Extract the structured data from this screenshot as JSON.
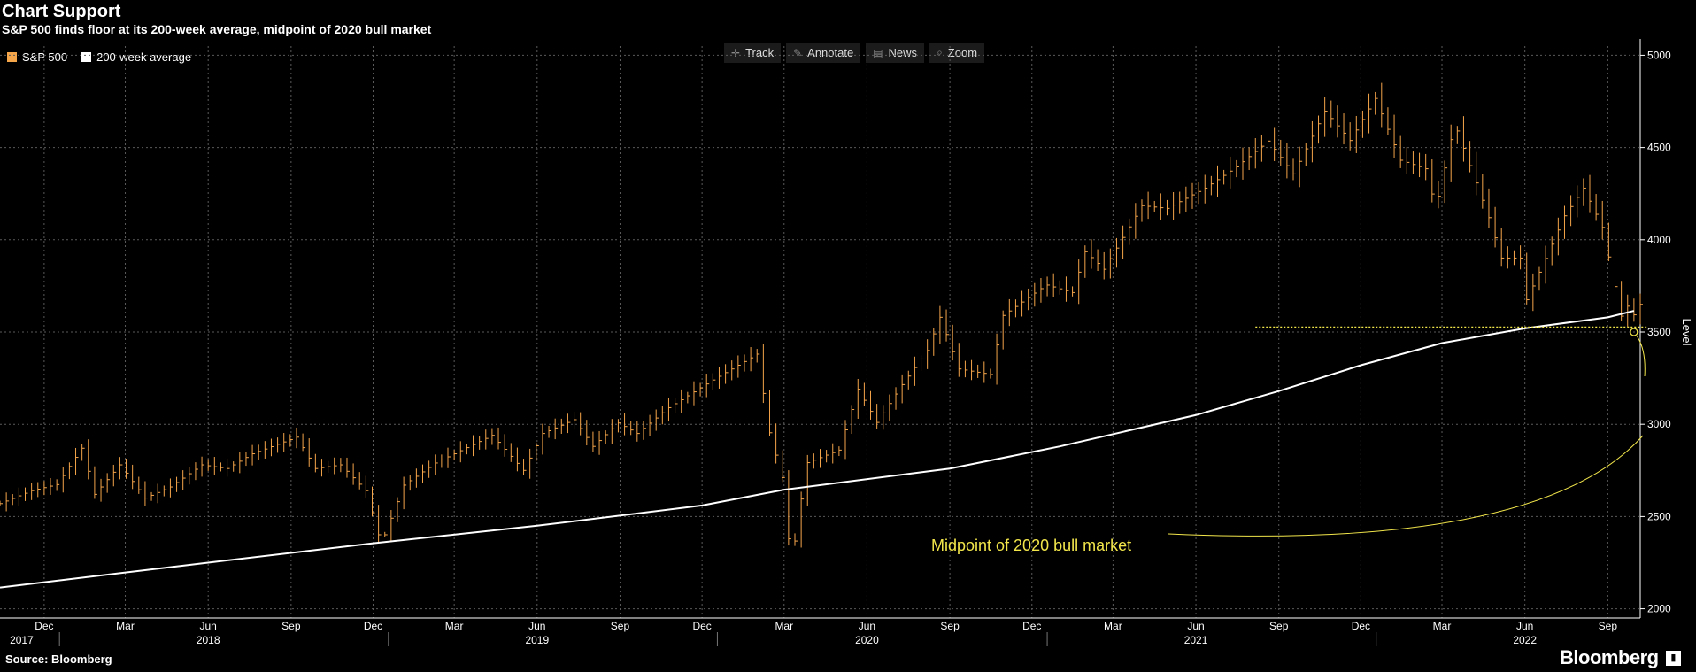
{
  "header": {
    "title": "Chart Support",
    "subtitle": "S&P 500 finds floor at its 200-week average, midpoint of 2020 bull market"
  },
  "legend": [
    {
      "label": "S&P 500",
      "color": "#f5a54a"
    },
    {
      "label": "200-week average",
      "color": "#ffffff"
    }
  ],
  "toolbar": [
    {
      "label": "Track",
      "icon": "crosshair-icon",
      "glyph": "✛"
    },
    {
      "label": "Annotate",
      "icon": "pencil-icon",
      "glyph": "✎"
    },
    {
      "label": "News",
      "icon": "news-icon",
      "glyph": "▤"
    },
    {
      "label": "Zoom",
      "icon": "magnifier-icon",
      "glyph": "⌕"
    }
  ],
  "footer": {
    "source": "Source: Bloomberg",
    "brand": "Bloomberg"
  },
  "colors": {
    "background": "#000000",
    "sp500": "#f5a54a",
    "average": "#ffffff",
    "annotation": "#f2e64b",
    "grid": "#5a5a5a"
  },
  "chart_data": {
    "type": "line",
    "ylabel": "Level",
    "ylim": [
      1950,
      5050
    ],
    "yticks": [
      2000,
      2500,
      3000,
      3500,
      4000,
      4500,
      5000
    ],
    "x_range": [
      "2017-10-27",
      "2022-10-21"
    ],
    "x_month_ticks": [
      {
        "label": "Dec",
        "date": "2017-12-15"
      },
      {
        "label": "Mar",
        "date": "2018-03-15"
      },
      {
        "label": "Jun",
        "date": "2018-06-15"
      },
      {
        "label": "Sep",
        "date": "2018-09-15"
      },
      {
        "label": "Dec",
        "date": "2018-12-15"
      },
      {
        "label": "Mar",
        "date": "2019-03-15"
      },
      {
        "label": "Jun",
        "date": "2019-06-15"
      },
      {
        "label": "Sep",
        "date": "2019-09-15"
      },
      {
        "label": "Dec",
        "date": "2019-12-15"
      },
      {
        "label": "Mar",
        "date": "2020-03-15"
      },
      {
        "label": "Jun",
        "date": "2020-06-15"
      },
      {
        "label": "Sep",
        "date": "2020-09-15"
      },
      {
        "label": "Dec",
        "date": "2020-12-15"
      },
      {
        "label": "Mar",
        "date": "2021-03-15"
      },
      {
        "label": "Jun",
        "date": "2021-06-15"
      },
      {
        "label": "Sep",
        "date": "2021-09-15"
      },
      {
        "label": "Dec",
        "date": "2021-12-15"
      },
      {
        "label": "Mar",
        "date": "2022-03-15"
      },
      {
        "label": "Jun",
        "date": "2022-06-15"
      },
      {
        "label": "Sep",
        "date": "2022-09-15"
      }
    ],
    "x_year_labels": [
      {
        "label": "2017",
        "date": "2017-11-20"
      },
      {
        "label": "2018",
        "date": "2018-06-15"
      },
      {
        "label": "2019",
        "date": "2019-06-15"
      },
      {
        "label": "2020",
        "date": "2020-06-15"
      },
      {
        "label": "2021",
        "date": "2021-06-15"
      },
      {
        "label": "2022",
        "date": "2022-06-15"
      }
    ],
    "x_year_dividers": [
      "2018-01-01",
      "2019-01-01",
      "2020-01-01",
      "2021-01-01",
      "2022-01-01"
    ],
    "series": [
      {
        "name": "S&P 500",
        "style": "weekly-bars",
        "color": "#f5a54a",
        "points": [
          [
            "2017-10-27",
            2570
          ],
          [
            "2017-12-01",
            2640
          ],
          [
            "2017-12-29",
            2673
          ],
          [
            "2018-01-26",
            2870
          ],
          [
            "2018-02-09",
            2620
          ],
          [
            "2018-03-09",
            2780
          ],
          [
            "2018-04-06",
            2600
          ],
          [
            "2018-05-04",
            2660
          ],
          [
            "2018-06-08",
            2780
          ],
          [
            "2018-07-06",
            2760
          ],
          [
            "2018-08-03",
            2840
          ],
          [
            "2018-09-21",
            2930
          ],
          [
            "2018-10-12",
            2760
          ],
          [
            "2018-11-09",
            2780
          ],
          [
            "2018-12-07",
            2640
          ],
          [
            "2018-12-24",
            2350
          ],
          [
            "2019-01-18",
            2670
          ],
          [
            "2019-02-22",
            2790
          ],
          [
            "2019-04-05",
            2890
          ],
          [
            "2019-04-26",
            2940
          ],
          [
            "2019-05-31",
            2750
          ],
          [
            "2019-06-21",
            2950
          ],
          [
            "2019-07-26",
            3025
          ],
          [
            "2019-08-16",
            2880
          ],
          [
            "2019-09-13",
            3007
          ],
          [
            "2019-10-04",
            2950
          ],
          [
            "2019-11-08",
            3090
          ],
          [
            "2019-12-27",
            3240
          ],
          [
            "2020-02-14",
            3380
          ],
          [
            "2020-02-28",
            2954
          ],
          [
            "2020-03-13",
            2711
          ],
          [
            "2020-03-23",
            2237
          ],
          [
            "2020-04-09",
            2790
          ],
          [
            "2020-05-15",
            2860
          ],
          [
            "2020-06-05",
            3190
          ],
          [
            "2020-06-26",
            3010
          ],
          [
            "2020-07-24",
            3215
          ],
          [
            "2020-08-21",
            3400
          ],
          [
            "2020-09-04",
            3580
          ],
          [
            "2020-09-25",
            3300
          ],
          [
            "2020-10-30",
            3270
          ],
          [
            "2020-11-13",
            3590
          ],
          [
            "2020-12-31",
            3756
          ],
          [
            "2021-01-29",
            3714
          ],
          [
            "2021-02-12",
            3935
          ],
          [
            "2021-03-05",
            3840
          ],
          [
            "2021-04-16",
            4185
          ],
          [
            "2021-05-14",
            4170
          ],
          [
            "2021-06-25",
            4280
          ],
          [
            "2021-07-30",
            4395
          ],
          [
            "2021-09-03",
            4535
          ],
          [
            "2021-10-01",
            4357
          ],
          [
            "2021-11-05",
            4697
          ],
          [
            "2021-12-03",
            4538
          ],
          [
            "2021-12-31",
            4766
          ],
          [
            "2022-01-28",
            4431
          ],
          [
            "2022-02-25",
            4385
          ],
          [
            "2022-03-08",
            4170
          ],
          [
            "2022-03-25",
            4543
          ],
          [
            "2022-03-29",
            4630
          ],
          [
            "2022-05-06",
            4120
          ],
          [
            "2022-05-20",
            3901
          ],
          [
            "2022-06-10",
            3901
          ],
          [
            "2022-06-17",
            3675
          ],
          [
            "2022-07-08",
            3899
          ],
          [
            "2022-07-29",
            4130
          ],
          [
            "2022-08-19",
            4280
          ],
          [
            "2022-09-09",
            4067
          ],
          [
            "2022-09-30",
            3586
          ],
          [
            "2022-10-07",
            3640
          ],
          [
            "2022-10-12",
            3577
          ],
          [
            "2022-10-21",
            3650
          ]
        ]
      },
      {
        "name": "200-week average",
        "style": "line",
        "color": "#ffffff",
        "points": [
          [
            "2017-10-27",
            2115
          ],
          [
            "2018-06-15",
            2250
          ],
          [
            "2018-12-15",
            2355
          ],
          [
            "2019-06-15",
            2450
          ],
          [
            "2019-12-15",
            2560
          ],
          [
            "2020-03-15",
            2645
          ],
          [
            "2020-09-15",
            2760
          ],
          [
            "2021-01-15",
            2880
          ],
          [
            "2021-06-15",
            3050
          ],
          [
            "2021-09-15",
            3180
          ],
          [
            "2021-12-15",
            3320
          ],
          [
            "2022-03-15",
            3440
          ],
          [
            "2022-06-15",
            3520
          ],
          [
            "2022-09-15",
            3580
          ],
          [
            "2022-10-14",
            3615
          ]
        ]
      }
    ],
    "annotations": {
      "midpoint_line": {
        "y": 3525,
        "from": "2021-08-20",
        "to": "2022-10-28",
        "color": "#f2e64b"
      },
      "midpoint_label": "Midpoint of 2020 bull market",
      "marker": {
        "date": "2022-10-14",
        "y": 3500
      }
    }
  }
}
